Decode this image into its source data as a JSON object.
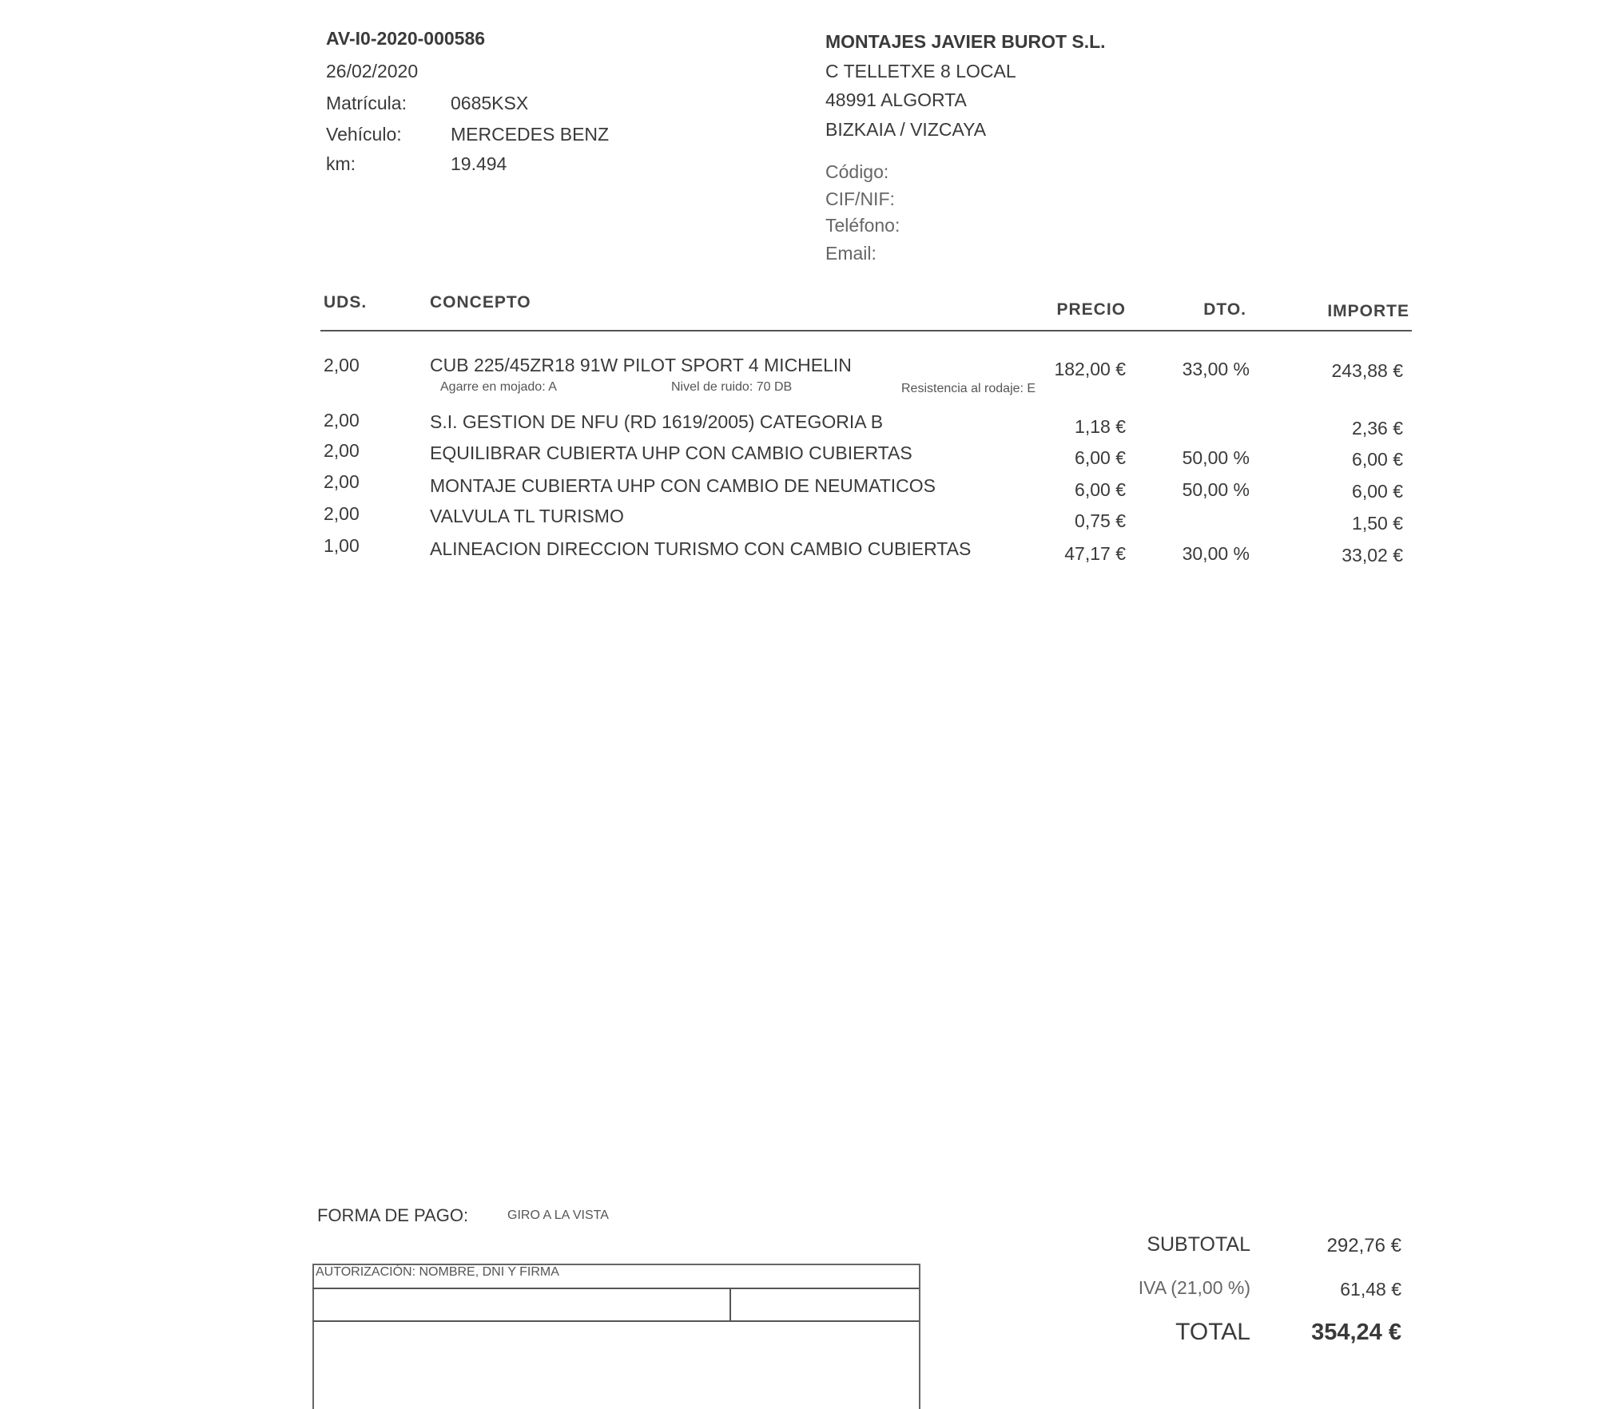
{
  "doc": {
    "number": "AV-I0-2020-000586",
    "date": "26/02/2020",
    "vehicle_fields": [
      {
        "label": "Matrícula:",
        "value": "0685KSX"
      },
      {
        "label": "Vehículo:",
        "value": "MERCEDES BENZ"
      },
      {
        "label": "km:",
        "value": "19.494"
      }
    ]
  },
  "customer": {
    "name": "MONTAJES JAVIER BUROT S.L.",
    "address": [
      "C TELLETXE 8 LOCAL",
      "48991 ALGORTA",
      "BIZKAIA / VIZCAYA"
    ],
    "fields": [
      "Código:",
      "CIF/NIF:",
      "Teléfono:",
      "Email:"
    ]
  },
  "table": {
    "headers": {
      "uds": "UDS.",
      "concepto": "CONCEPTO",
      "precio": "PRECIO",
      "dto": "DTO.",
      "importe": "IMPORTE"
    },
    "rows": [
      {
        "uds": "2,00",
        "concepto": "CUB 225/45ZR18 91W PILOT SPORT 4 MICHELIN",
        "precio": "182,00 €",
        "dto": "33,00 %",
        "importe": "243,88 €",
        "details": [
          "Agarre en mojado: A",
          "Nivel de ruido: 70 DB",
          "Resistencia al rodaje: E"
        ]
      },
      {
        "uds": "2,00",
        "concepto": "S.I. GESTION DE NFU (RD 1619/2005) CATEGORIA B",
        "precio": "1,18 €",
        "dto": "",
        "importe": "2,36 €"
      },
      {
        "uds": "2,00",
        "concepto": "EQUILIBRAR CUBIERTA UHP CON CAMBIO CUBIERTAS",
        "precio": "6,00 €",
        "dto": "50,00 %",
        "importe": "6,00 €"
      },
      {
        "uds": "2,00",
        "concepto": "MONTAJE CUBIERTA UHP CON CAMBIO DE NEUMATICOS",
        "precio": "6,00 €",
        "dto": "50,00 %",
        "importe": "6,00 €"
      },
      {
        "uds": "2,00",
        "concepto": "VALVULA TL TURISMO",
        "precio": "0,75 €",
        "dto": "",
        "importe": "1,50 €"
      },
      {
        "uds": "1,00",
        "concepto": "ALINEACION DIRECCION TURISMO CON CAMBIO CUBIERTAS",
        "precio": "47,17 €",
        "dto": "30,00 %",
        "importe": "33,02 €"
      }
    ]
  },
  "payment": {
    "label": "FORMA DE PAGO:",
    "value": "GIRO A LA VISTA"
  },
  "authorization": {
    "label": "AUTORIZACIÓN: NOMBRE, DNI Y FIRMA"
  },
  "totals": {
    "subtotal_label": "SUBTOTAL",
    "subtotal": "292,76 €",
    "iva_label": "IVA (21,00 %)",
    "iva": "61,48 €",
    "total_label": "TOTAL",
    "total": "354,24 €"
  }
}
